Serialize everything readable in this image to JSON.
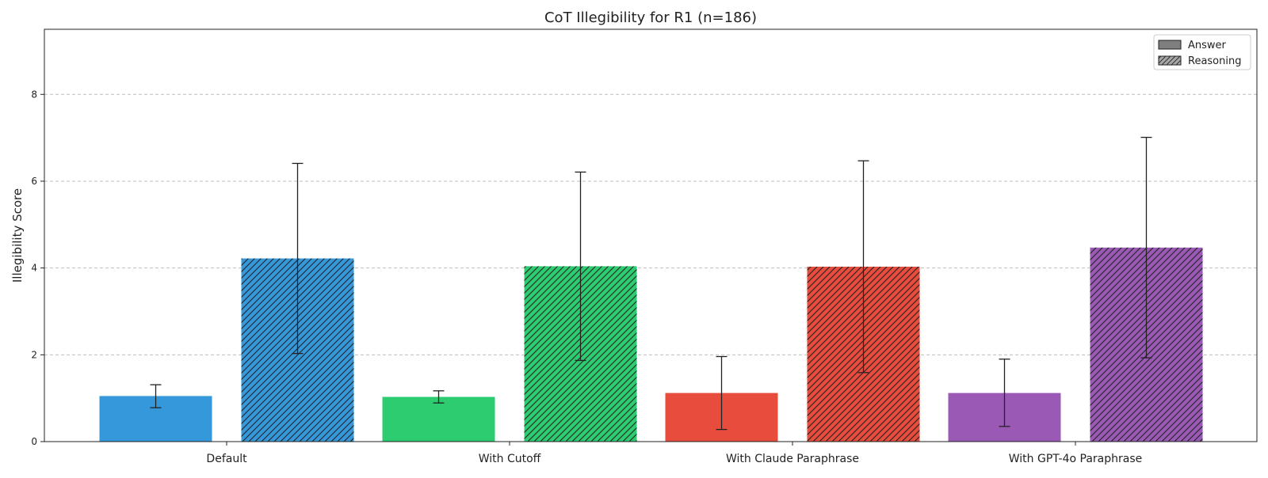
{
  "chart_data": {
    "type": "bar",
    "title": "CoT Illegibility for R1 (n=186)",
    "xlabel": "",
    "ylabel": "Illegibility Score",
    "ylim": [
      0,
      9.5
    ],
    "yticks": [
      0,
      2,
      4,
      6,
      8
    ],
    "grid": true,
    "legend_position": "top-right",
    "categories": [
      "Default",
      "With Cutoff",
      "With Claude Paraphrase",
      "With GPT-4o Paraphrase"
    ],
    "colors": [
      "#3498db",
      "#2ecc71",
      "#e74c3c",
      "#9b59b6"
    ],
    "series": [
      {
        "name": "Answer",
        "pattern": "solid",
        "values": [
          1.05,
          1.03,
          1.12,
          1.12
        ],
        "error_low": [
          0.78,
          0.89,
          0.28,
          0.35
        ],
        "error_high": [
          1.31,
          1.17,
          1.96,
          1.9
        ]
      },
      {
        "name": "Reasoning",
        "pattern": "hatch",
        "values": [
          4.22,
          4.04,
          4.03,
          4.47
        ],
        "error_low": [
          2.03,
          1.87,
          1.59,
          1.93
        ],
        "error_high": [
          6.41,
          6.21,
          6.47,
          7.01
        ]
      }
    ]
  }
}
